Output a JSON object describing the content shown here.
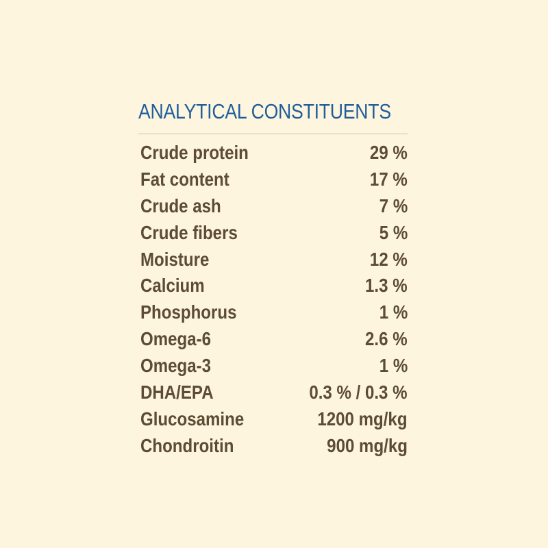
{
  "colors": {
    "background": "#fdf5dd",
    "title": "#1f5d9c",
    "text": "#5d4c35",
    "rule": "#c9c1ad"
  },
  "title": "ANALYTICAL CONSTITUENTS",
  "rows": [
    {
      "label": "Crude protein",
      "value": "29 %"
    },
    {
      "label": "Fat content",
      "value": "17 %"
    },
    {
      "label": "Crude ash",
      "value": "7 %"
    },
    {
      "label": "Crude fibers",
      "value": "5 %"
    },
    {
      "label": "Moisture",
      "value": "12 %"
    },
    {
      "label": "Calcium",
      "value": "1.3 %"
    },
    {
      "label": "Phosphorus",
      "value": "1 %"
    },
    {
      "label": "Omega-6",
      "value": "2.6 %"
    },
    {
      "label": "Omega-3",
      "value": "1 %"
    },
    {
      "label": "DHA/EPA",
      "value": "0.3 % / 0.3 %"
    },
    {
      "label": "Glucosamine",
      "value": "1200 mg/kg"
    },
    {
      "label": "Chondroitin",
      "value": "900 mg/kg"
    }
  ]
}
